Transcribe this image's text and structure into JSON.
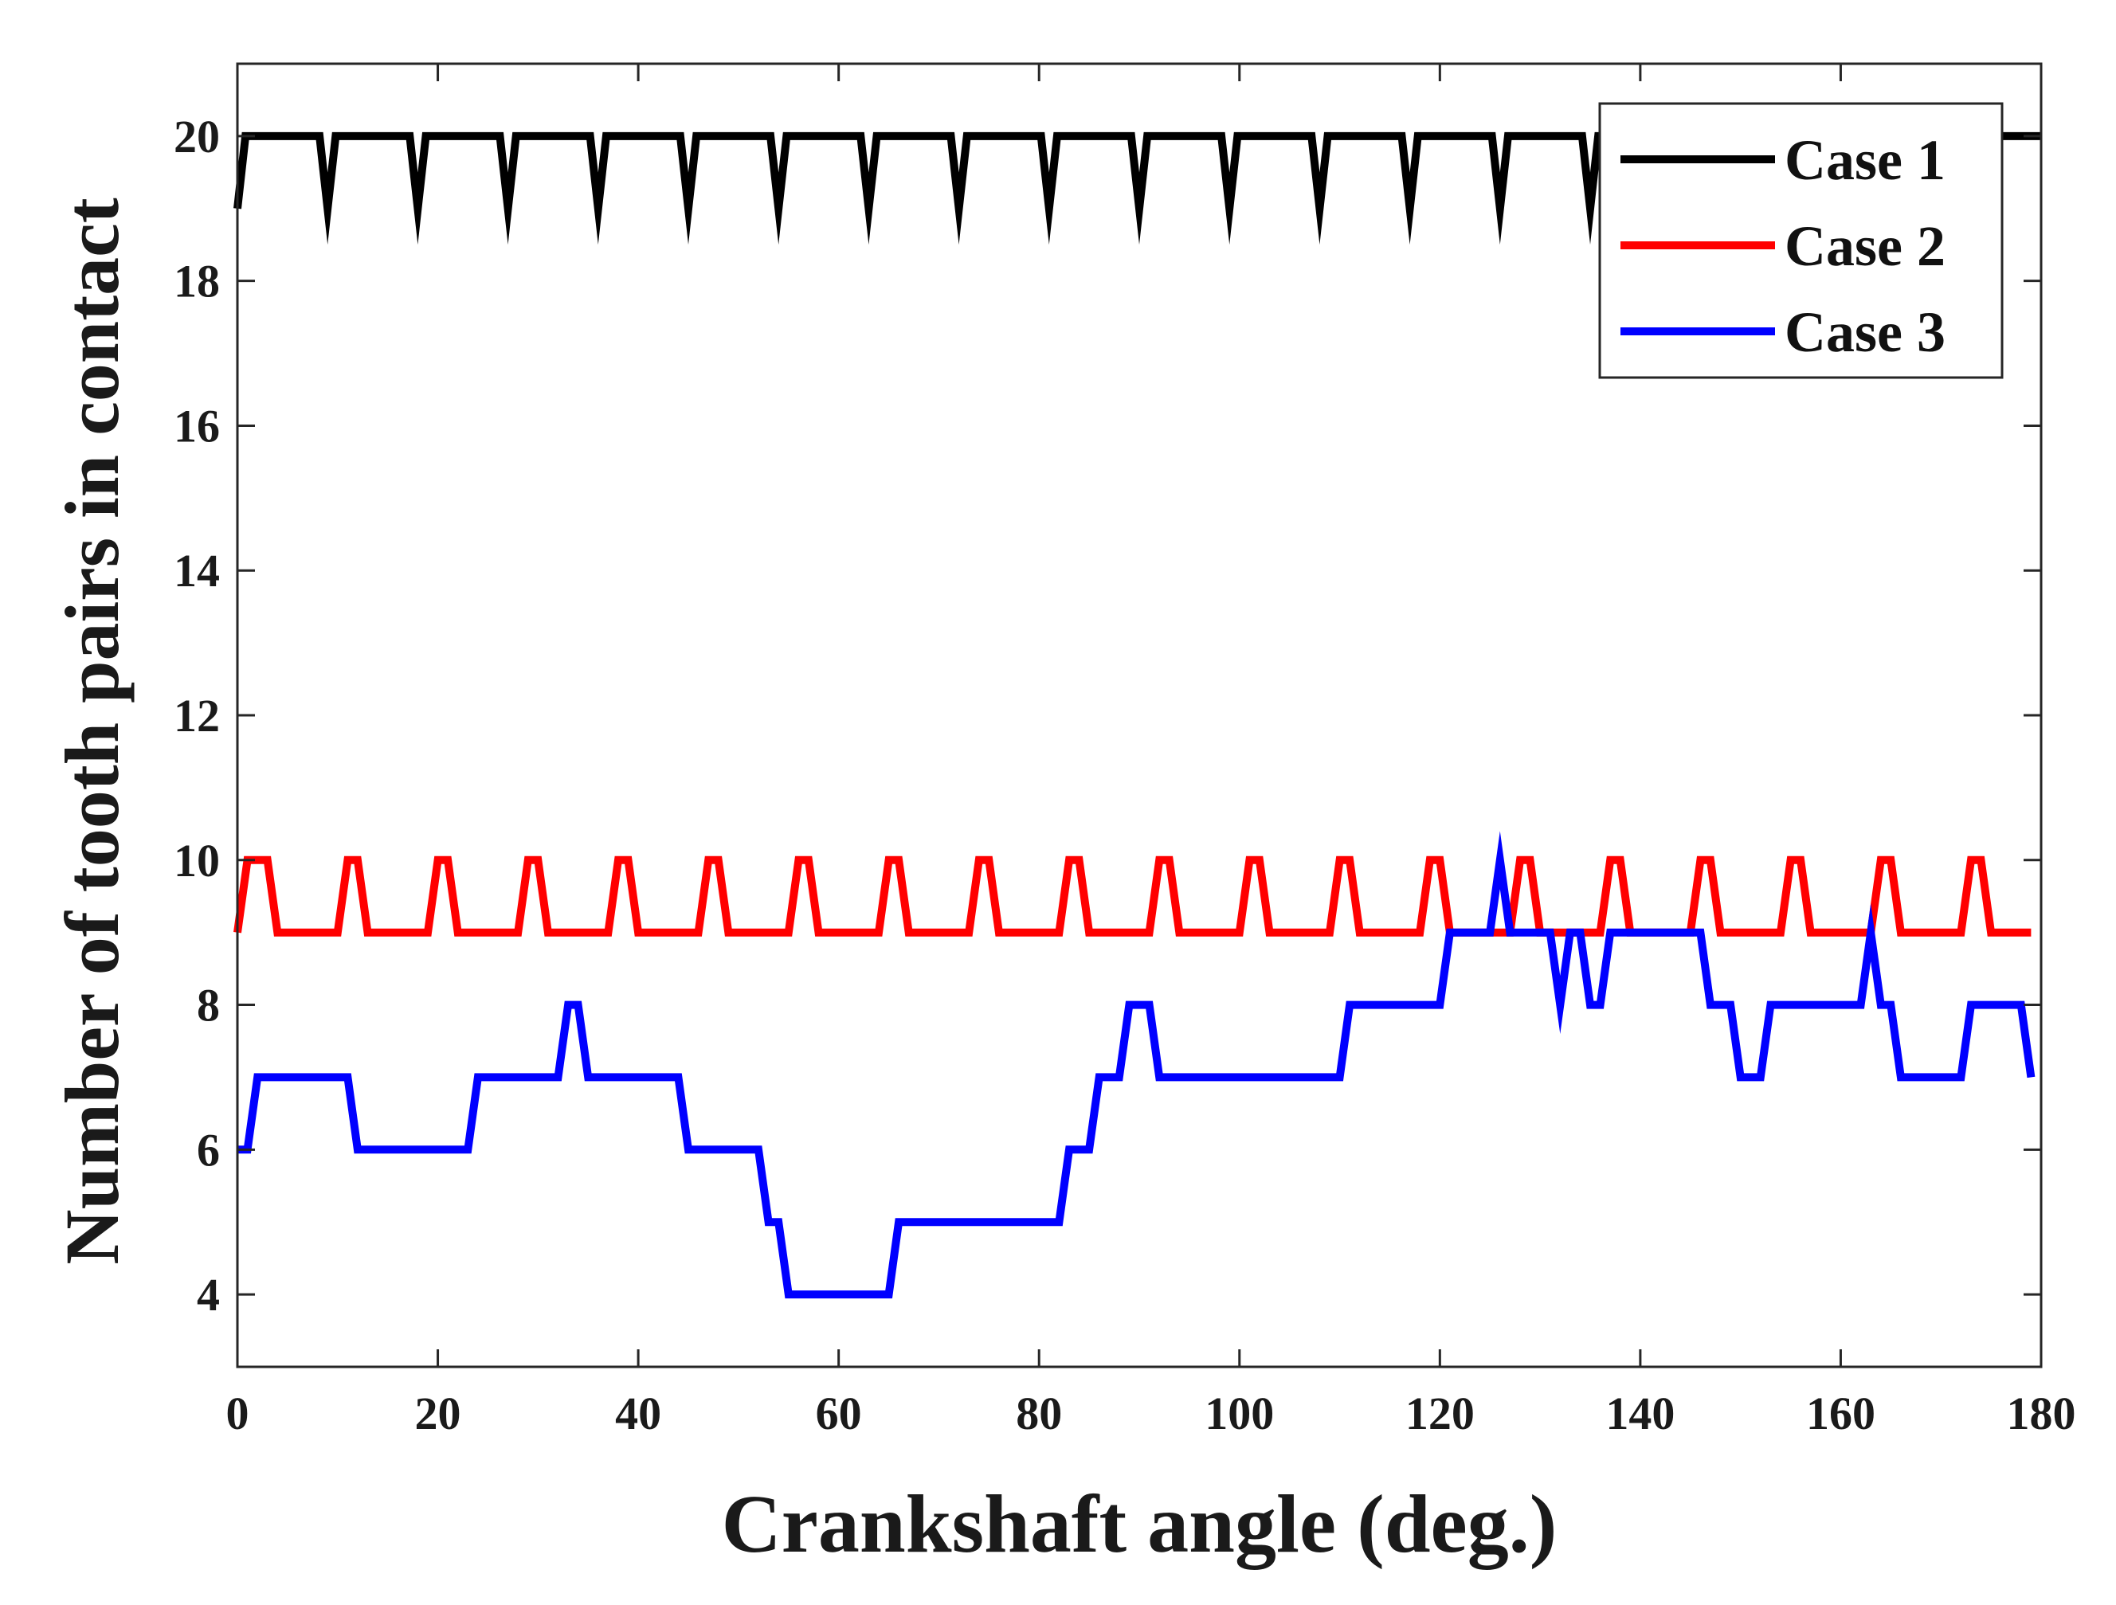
{
  "chart_data": {
    "type": "line",
    "title": "",
    "xlabel": "Crankshaft angle (deg.)",
    "ylabel": "Number of tooth pairs in contact",
    "xlim": [
      0,
      180
    ],
    "ylim": [
      3,
      21
    ],
    "xticks": [
      0,
      20,
      40,
      60,
      80,
      100,
      120,
      140,
      160,
      180
    ],
    "yticks": [
      4,
      6,
      8,
      10,
      12,
      14,
      16,
      18,
      20
    ],
    "grid": false,
    "legend_position": "top-right",
    "series": [
      {
        "name": "Case 1",
        "color": "#000000",
        "x": [
          0,
          0.8,
          8.2,
          9,
          9.8,
          17.2,
          18,
          18.8,
          26.2,
          27,
          27.8,
          35.2,
          36,
          36.8,
          44.2,
          45,
          45.8,
          53.2,
          54,
          54.8,
          62.2,
          63,
          63.8,
          71.2,
          72,
          72.8,
          80.2,
          81,
          81.8,
          89.2,
          90,
          90.8,
          98.2,
          99,
          99.8,
          107.2,
          108,
          108.8,
          116.2,
          117,
          117.8,
          125.2,
          126,
          126.8,
          134.2,
          135,
          135.8,
          180
        ],
        "y": [
          19,
          20,
          20,
          19,
          20,
          20,
          19,
          20,
          20,
          19,
          20,
          20,
          19,
          20,
          20,
          19,
          20,
          20,
          19,
          20,
          20,
          19,
          20,
          20,
          19,
          20,
          20,
          19,
          20,
          20,
          19,
          20,
          20,
          19,
          20,
          20,
          19,
          20,
          20,
          19,
          20,
          20,
          19,
          20,
          20,
          19,
          20,
          20
        ]
      },
      {
        "name": "Case 2",
        "color": "#ff0000",
        "x": [
          0,
          1,
          3,
          4,
          10,
          11,
          12,
          13,
          19,
          20,
          21,
          22,
          28,
          29,
          30,
          31,
          37,
          38,
          39,
          40,
          46,
          47,
          48,
          49,
          55,
          56,
          57,
          58,
          64,
          65,
          66,
          67,
          73,
          74,
          75,
          76,
          82,
          83,
          84,
          85,
          91,
          92,
          93,
          94,
          100,
          101,
          102,
          103,
          109,
          110,
          111,
          112,
          118,
          119,
          120,
          121,
          127,
          128,
          129,
          130,
          136,
          137,
          138,
          139,
          145,
          146,
          147,
          148,
          154,
          155,
          156,
          157,
          163,
          164,
          165,
          166,
          172,
          173,
          174,
          175,
          179
        ],
        "y": [
          9,
          10,
          10,
          9,
          9,
          10,
          10,
          9,
          9,
          10,
          10,
          9,
          9,
          10,
          10,
          9,
          9,
          10,
          10,
          9,
          9,
          10,
          10,
          9,
          9,
          10,
          10,
          9,
          9,
          10,
          10,
          9,
          9,
          10,
          10,
          9,
          9,
          10,
          10,
          9,
          9,
          10,
          10,
          9,
          9,
          10,
          10,
          9,
          9,
          10,
          10,
          9,
          9,
          10,
          10,
          9,
          9,
          10,
          10,
          9,
          9,
          10,
          10,
          9,
          9,
          10,
          10,
          9,
          9,
          10,
          10,
          9,
          9,
          10,
          10,
          9,
          9,
          10,
          10,
          9,
          9
        ]
      },
      {
        "name": "Case 3",
        "color": "#0000ff",
        "x": [
          0,
          1,
          2,
          11,
          12,
          23,
          24,
          32,
          33,
          34,
          35,
          44,
          45,
          52,
          53,
          54,
          55,
          65,
          66,
          82,
          83,
          85,
          86,
          88,
          89,
          91,
          92,
          110,
          111,
          120,
          121,
          125,
          126,
          127,
          130,
          131,
          132,
          133,
          134,
          135,
          136,
          137,
          138,
          146,
          147,
          149,
          150,
          152,
          153,
          162,
          163,
          164,
          165,
          166,
          167,
          172,
          173,
          178,
          179
        ],
        "y": [
          6,
          6,
          7,
          7,
          6,
          6,
          7,
          7,
          8,
          8,
          7,
          7,
          6,
          6,
          5,
          5,
          4,
          4,
          5,
          5,
          6,
          6,
          7,
          7,
          8,
          8,
          7,
          7,
          8,
          8,
          9,
          9,
          10,
          9,
          9,
          9,
          8,
          9,
          9,
          8,
          8,
          9,
          9,
          9,
          8,
          8,
          7,
          7,
          8,
          8,
          9,
          8,
          8,
          7,
          7,
          7,
          8,
          8,
          7
        ]
      }
    ]
  }
}
